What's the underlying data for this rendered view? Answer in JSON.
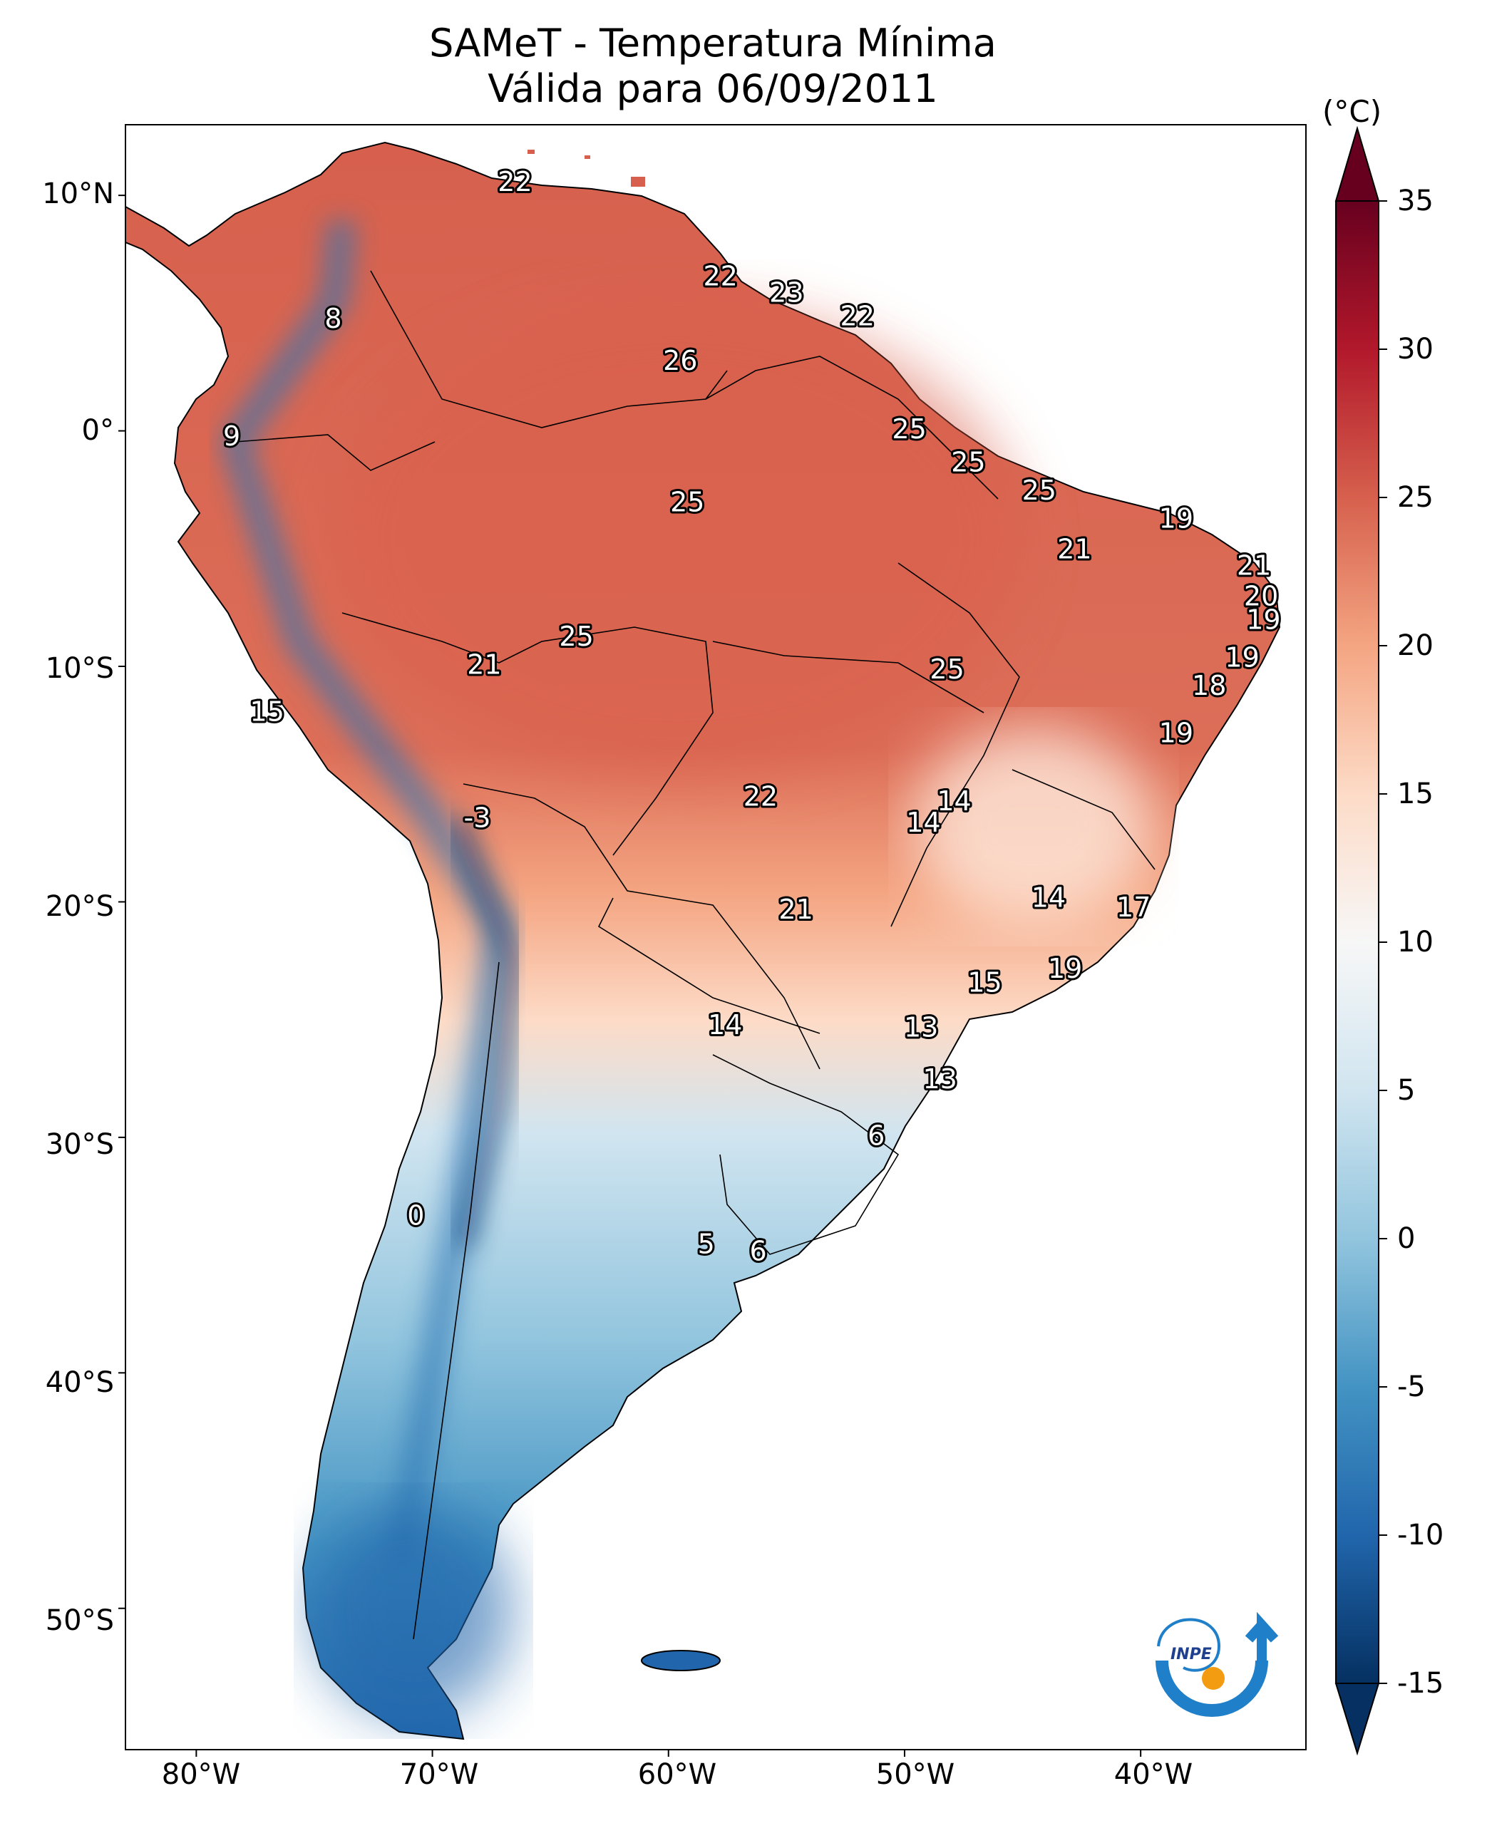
{
  "title": {
    "line1": "SAMeT - Temperatura Mínima",
    "line2": "Válida para 06/09/2011"
  },
  "axes": {
    "lat_labels": [
      "10°N",
      "0°",
      "10°S",
      "20°S",
      "30°S",
      "40°S",
      "50°S"
    ],
    "lon_labels": [
      "80°W",
      "70°W",
      "60°W",
      "50°W",
      "40°W"
    ]
  },
  "colorbar": {
    "unit": "(°C)",
    "ticks": [
      "35",
      "30",
      "25",
      "20",
      "15",
      "10",
      "5",
      "0",
      "-5",
      "-10",
      "-15"
    ],
    "range": [
      -15,
      35
    ],
    "extend": "both",
    "colormap": "RdBu_r",
    "colors": [
      "#053061",
      "#2166ac",
      "#4393c3",
      "#92c5de",
      "#d1e5f0",
      "#f7f7f7",
      "#fddbc7",
      "#f4a582",
      "#d6604d",
      "#b2182b",
      "#67001f"
    ]
  },
  "logo": {
    "name": "inpe-logo",
    "text": "INPE"
  },
  "station_values": [
    {
      "value": "22",
      "lon": -66.5,
      "lat": 10.5
    },
    {
      "value": "8",
      "lon": -74.2,
      "lat": 4.7
    },
    {
      "value": "22",
      "lon": -57.8,
      "lat": 6.5
    },
    {
      "value": "23",
      "lon": -55.0,
      "lat": 5.8
    },
    {
      "value": "22",
      "lon": -52.0,
      "lat": 4.8
    },
    {
      "value": "26",
      "lon": -59.5,
      "lat": 2.9
    },
    {
      "value": "9",
      "lon": -78.5,
      "lat": -0.3
    },
    {
      "value": "25",
      "lon": -49.8,
      "lat": 0.0
    },
    {
      "value": "25",
      "lon": -47.3,
      "lat": -1.4
    },
    {
      "value": "25",
      "lon": -44.3,
      "lat": -2.6
    },
    {
      "value": "25",
      "lon": -59.2,
      "lat": -3.1
    },
    {
      "value": "19",
      "lon": -38.5,
      "lat": -3.8
    },
    {
      "value": "21",
      "lon": -42.8,
      "lat": -5.1
    },
    {
      "value": "21",
      "lon": -35.2,
      "lat": -5.8
    },
    {
      "value": "20",
      "lon": -34.9,
      "lat": -7.1
    },
    {
      "value": "19",
      "lon": -34.8,
      "lat": -8.1
    },
    {
      "value": "25",
      "lon": -63.9,
      "lat": -8.8
    },
    {
      "value": "21",
      "lon": -67.8,
      "lat": -10.0
    },
    {
      "value": "25",
      "lon": -48.2,
      "lat": -10.2
    },
    {
      "value": "19",
      "lon": -35.7,
      "lat": -9.7
    },
    {
      "value": "18",
      "lon": -37.1,
      "lat": -10.9
    },
    {
      "value": "15",
      "lon": -77.0,
      "lat": -12.0
    },
    {
      "value": "19",
      "lon": -38.5,
      "lat": -12.9
    },
    {
      "value": "14",
      "lon": -47.9,
      "lat": -15.8
    },
    {
      "value": "14",
      "lon": -49.2,
      "lat": -16.7
    },
    {
      "value": "22",
      "lon": -56.1,
      "lat": -15.6
    },
    {
      "value": "-3",
      "lon": -68.1,
      "lat": -16.5
    },
    {
      "value": "14",
      "lon": -43.9,
      "lat": -19.9
    },
    {
      "value": "17",
      "lon": -40.3,
      "lat": -20.3
    },
    {
      "value": "21",
      "lon": -54.6,
      "lat": -20.4
    },
    {
      "value": "19",
      "lon": -43.2,
      "lat": -22.9
    },
    {
      "value": "15",
      "lon": -46.6,
      "lat": -23.5
    },
    {
      "value": "14",
      "lon": -57.6,
      "lat": -25.3
    },
    {
      "value": "13",
      "lon": -49.3,
      "lat": -25.4
    },
    {
      "value": "13",
      "lon": -48.5,
      "lat": -27.6
    },
    {
      "value": "6",
      "lon": -51.2,
      "lat": -30.0
    },
    {
      "value": "0",
      "lon": -70.7,
      "lat": -33.4
    },
    {
      "value": "5",
      "lon": -58.4,
      "lat": -34.6
    },
    {
      "value": "6",
      "lon": -56.2,
      "lat": -34.9
    }
  ]
}
